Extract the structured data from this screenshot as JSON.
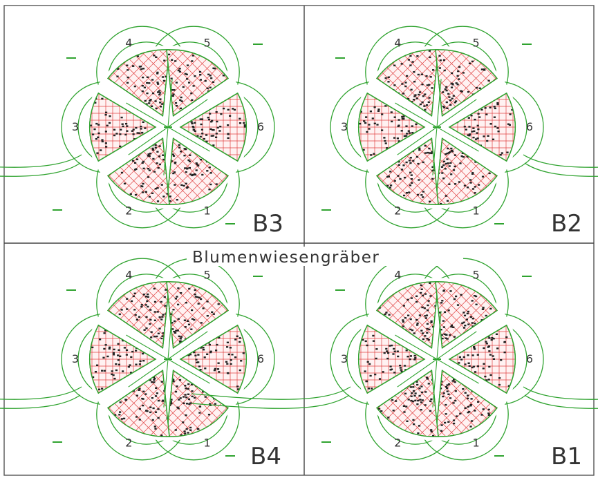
{
  "title": "Blumenwiesengräber",
  "colors": {
    "path": "#2fa32f",
    "grid": "#e04040",
    "frame": "#555555"
  },
  "sections": [
    {
      "id": "B3",
      "label": "B3"
    },
    {
      "id": "B2",
      "label": "B2"
    },
    {
      "id": "B4",
      "label": "B4"
    },
    {
      "id": "B1",
      "label": "B1"
    }
  ],
  "petal_labels": [
    "1",
    "2",
    "3",
    "4",
    "5",
    "6"
  ]
}
